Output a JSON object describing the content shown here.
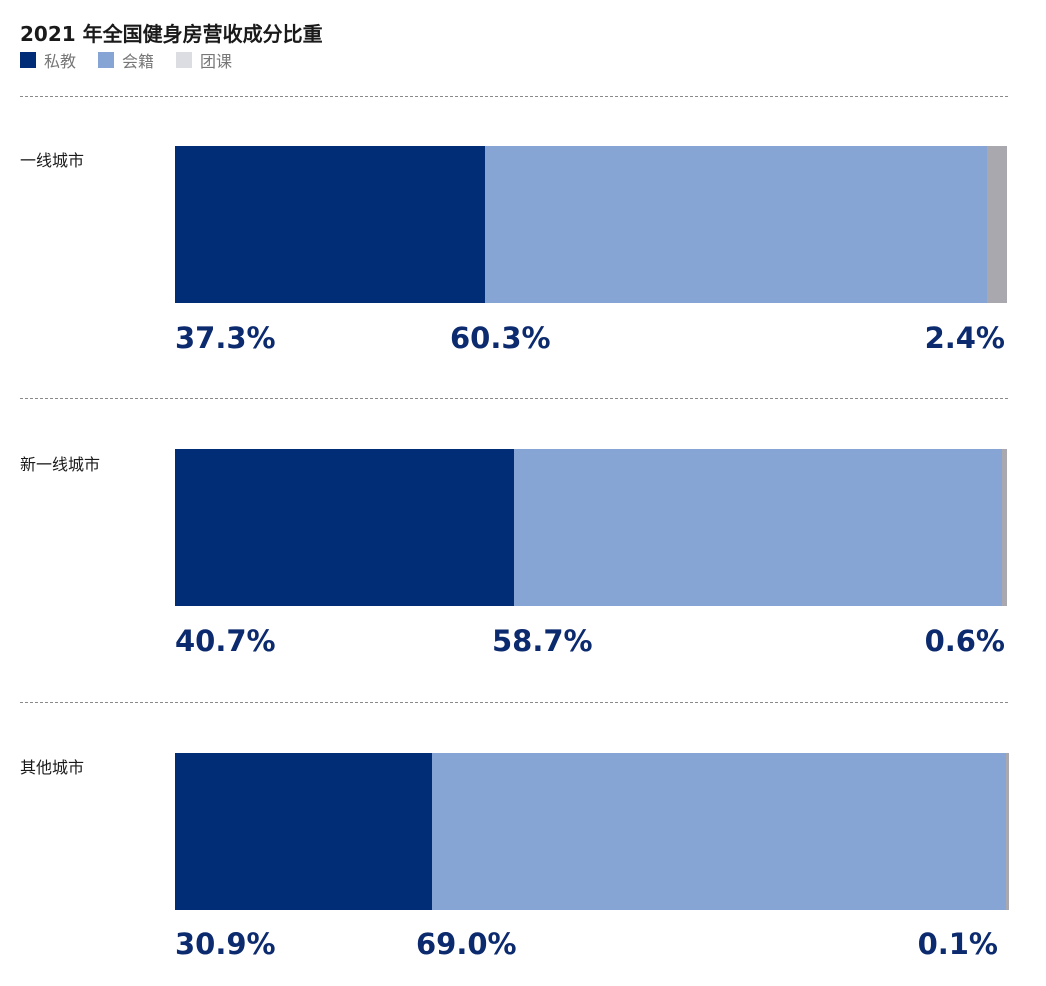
{
  "chart_data": {
    "type": "bar",
    "orientation": "horizontal",
    "stacked": true,
    "title": "2021 年全国健身房营收成分比重",
    "categories": [
      "一线城市",
      "新一线城市",
      "其他城市"
    ],
    "series": [
      {
        "name": "私教",
        "values": [
          37.3,
          40.7,
          30.9
        ],
        "labels": [
          "37.3%",
          "40.7%",
          "30.9%"
        ],
        "color": "#002d76"
      },
      {
        "name": "会籍",
        "values": [
          60.3,
          58.7,
          69.0
        ],
        "labels": [
          "60.3%",
          "58.7%",
          "69.0%"
        ],
        "color": "#86a5d4"
      },
      {
        "name": "团课",
        "values": [
          2.4,
          0.6,
          0.1
        ],
        "labels": [
          "2.4%",
          "0.6%",
          "0.1%"
        ],
        "color": "#a8a8ae"
      }
    ],
    "legend_swatch_colors": [
      "#002d76",
      "#86a5d4",
      "#dcdde3"
    ],
    "label_color": "#0c2a6e",
    "legend_position": "top-left",
    "grid": false
  }
}
